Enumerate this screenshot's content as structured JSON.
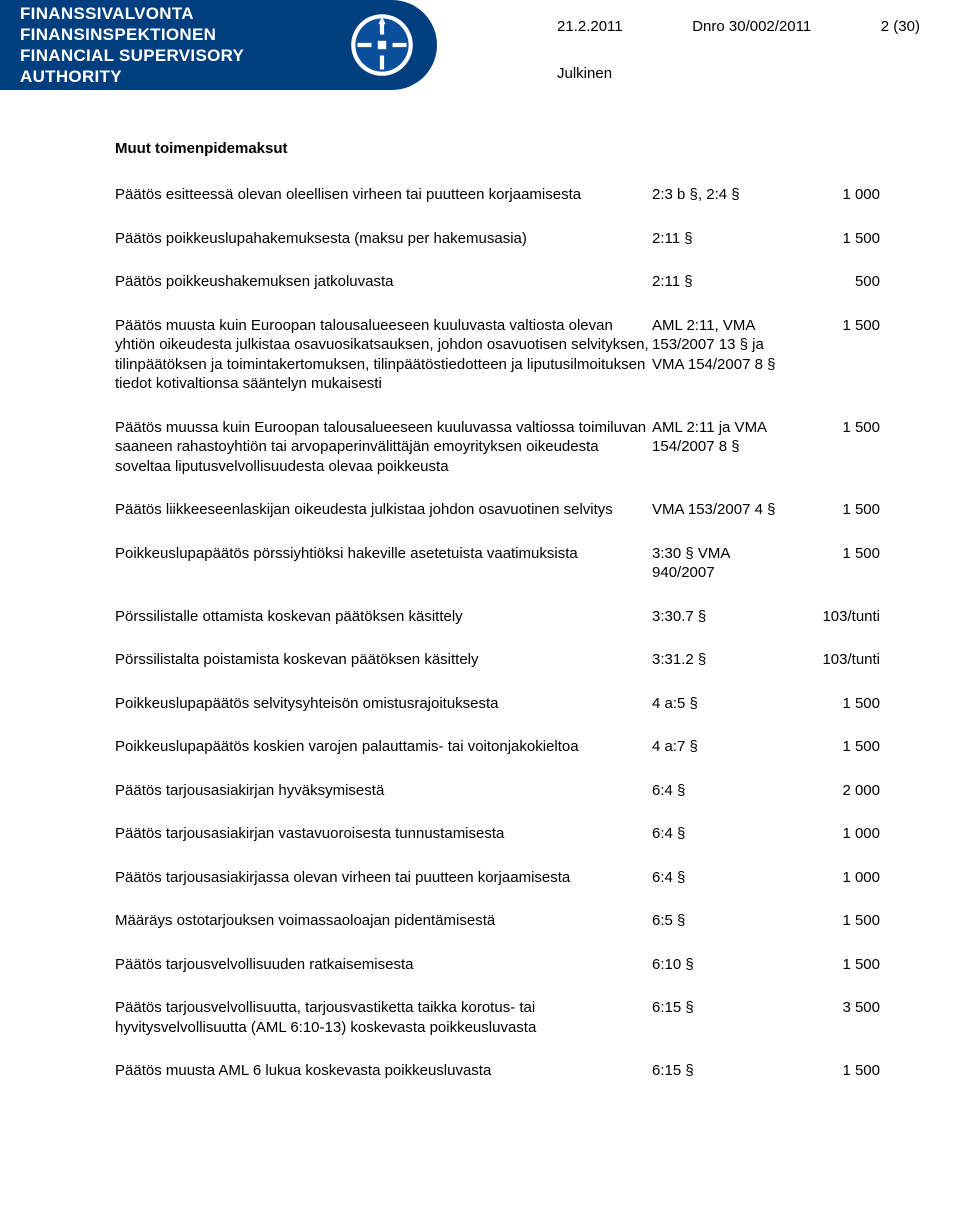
{
  "header": {
    "org_line1": "FINANSSIVALVONTA",
    "org_line2": "FINANSINSPEKTIONEN",
    "org_line3": "FINANCIAL SUPERVISORY AUTHORITY",
    "page_indicator": "2 (30)",
    "date": "21.2.2011",
    "dnro": "Dnro 30/002/2011",
    "classification": "Julkinen"
  },
  "section_title": "Muut toimenpidemaksut",
  "rows": [
    {
      "desc": "Päätös esitteessä olevan oleellisen virheen tai puutteen korjaamisesta",
      "ref": "2:3 b §, 2:4 §",
      "amt": "1 000"
    },
    {
      "desc": "Päätös poikkeuslupahakemuksesta (maksu per hakemusasia)",
      "ref": "2:11 §",
      "amt": "1 500"
    },
    {
      "desc": "Päätös poikkeushakemuksen jatkoluvasta",
      "ref": "2:11 §",
      "amt": "500"
    },
    {
      "desc": "Päätös muusta kuin Euroopan talousalueeseen kuuluvasta valtiosta olevan yhtiön oikeudesta julkistaa osavuosikatsauksen, johdon osavuotisen selvityksen, tilinpäätöksen ja toimintakertomuksen, tilinpäätöstiedotteen ja liputusilmoituksen tiedot kotivaltionsa sääntelyn mukaisesti",
      "ref": "AML 2:11, VMA 153/2007 13 § ja VMA 154/2007 8 §",
      "amt": "1 500"
    },
    {
      "desc": "Päätös muussa kuin Euroopan talousalueeseen kuuluvassa valtiossa toimiluvan saaneen rahastoyhtiön tai arvopaperinvälittäjän emoyrityksen oikeudesta soveltaa liputusvelvollisuudesta olevaa poikkeusta",
      "ref": "AML 2:11 ja VMA 154/2007 8 §",
      "amt": "1 500"
    },
    {
      "desc": "Päätös liikkeeseenlaskijan oikeudesta julkistaa johdon osavuotinen selvitys",
      "ref": "VMA 153/2007 4 §",
      "amt": "1 500"
    },
    {
      "desc": "Poikkeuslupapäätös pörssiyhtiöksi hakeville asetetuista vaatimuksista",
      "ref": "3:30 § VMA 940/2007",
      "amt": "1 500"
    },
    {
      "desc": "Pörssilistalle ottamista koskevan päätöksen käsittely",
      "ref": "3:30.7 §",
      "amt": "103/tunti"
    },
    {
      "desc": "Pörssilistalta poistamista koskevan päätöksen käsittely",
      "ref": "3:31.2 §",
      "amt": "103/tunti"
    },
    {
      "desc": "Poikkeuslupapäätös selvitysyhteisön omistusrajoituksesta",
      "ref": "4 a:5 §",
      "amt": "1 500"
    },
    {
      "desc": "Poikkeuslupapäätös koskien varojen palauttamis- tai voitonjakokieltoa",
      "ref": "4 a:7 §",
      "amt": "1 500"
    },
    {
      "desc": "Päätös tarjousasiakirjan hyväksymisestä",
      "ref": "6:4 §",
      "amt": "2 000"
    },
    {
      "desc": "Päätös tarjousasiakirjan vastavuoroisesta tunnustamisesta",
      "ref": "6:4 §",
      "amt": "1 000"
    },
    {
      "desc": "Päätös tarjousasiakirjassa olevan virheen tai puutteen korjaamisesta",
      "ref": "6:4 §",
      "amt": "1 000"
    },
    {
      "desc": "Määräys ostotarjouksen voimassaoloajan pidentämisestä",
      "ref": "6:5 §",
      "amt": "1 500"
    },
    {
      "desc": "Päätös tarjousvelvollisuuden ratkaisemisesta",
      "ref": "6:10 §",
      "amt": "1 500"
    },
    {
      "desc": "Päätös tarjousvelvollisuutta, tarjousvastiketta taikka korotus- tai hyvitysvelvollisuutta (AML 6:10-13) koskevasta poikkeusluvasta",
      "ref": "6:15 §",
      "amt": "3 500"
    },
    {
      "desc": "Päätös muusta AML 6 lukua koskevasta poikkeusluvasta",
      "ref": "6:15 §",
      "amt": "1 500"
    }
  ],
  "colors": {
    "brand_bg": "#003f7f",
    "brand_text": "#ffffff",
    "body_text": "#000000",
    "page_bg": "#ffffff"
  }
}
